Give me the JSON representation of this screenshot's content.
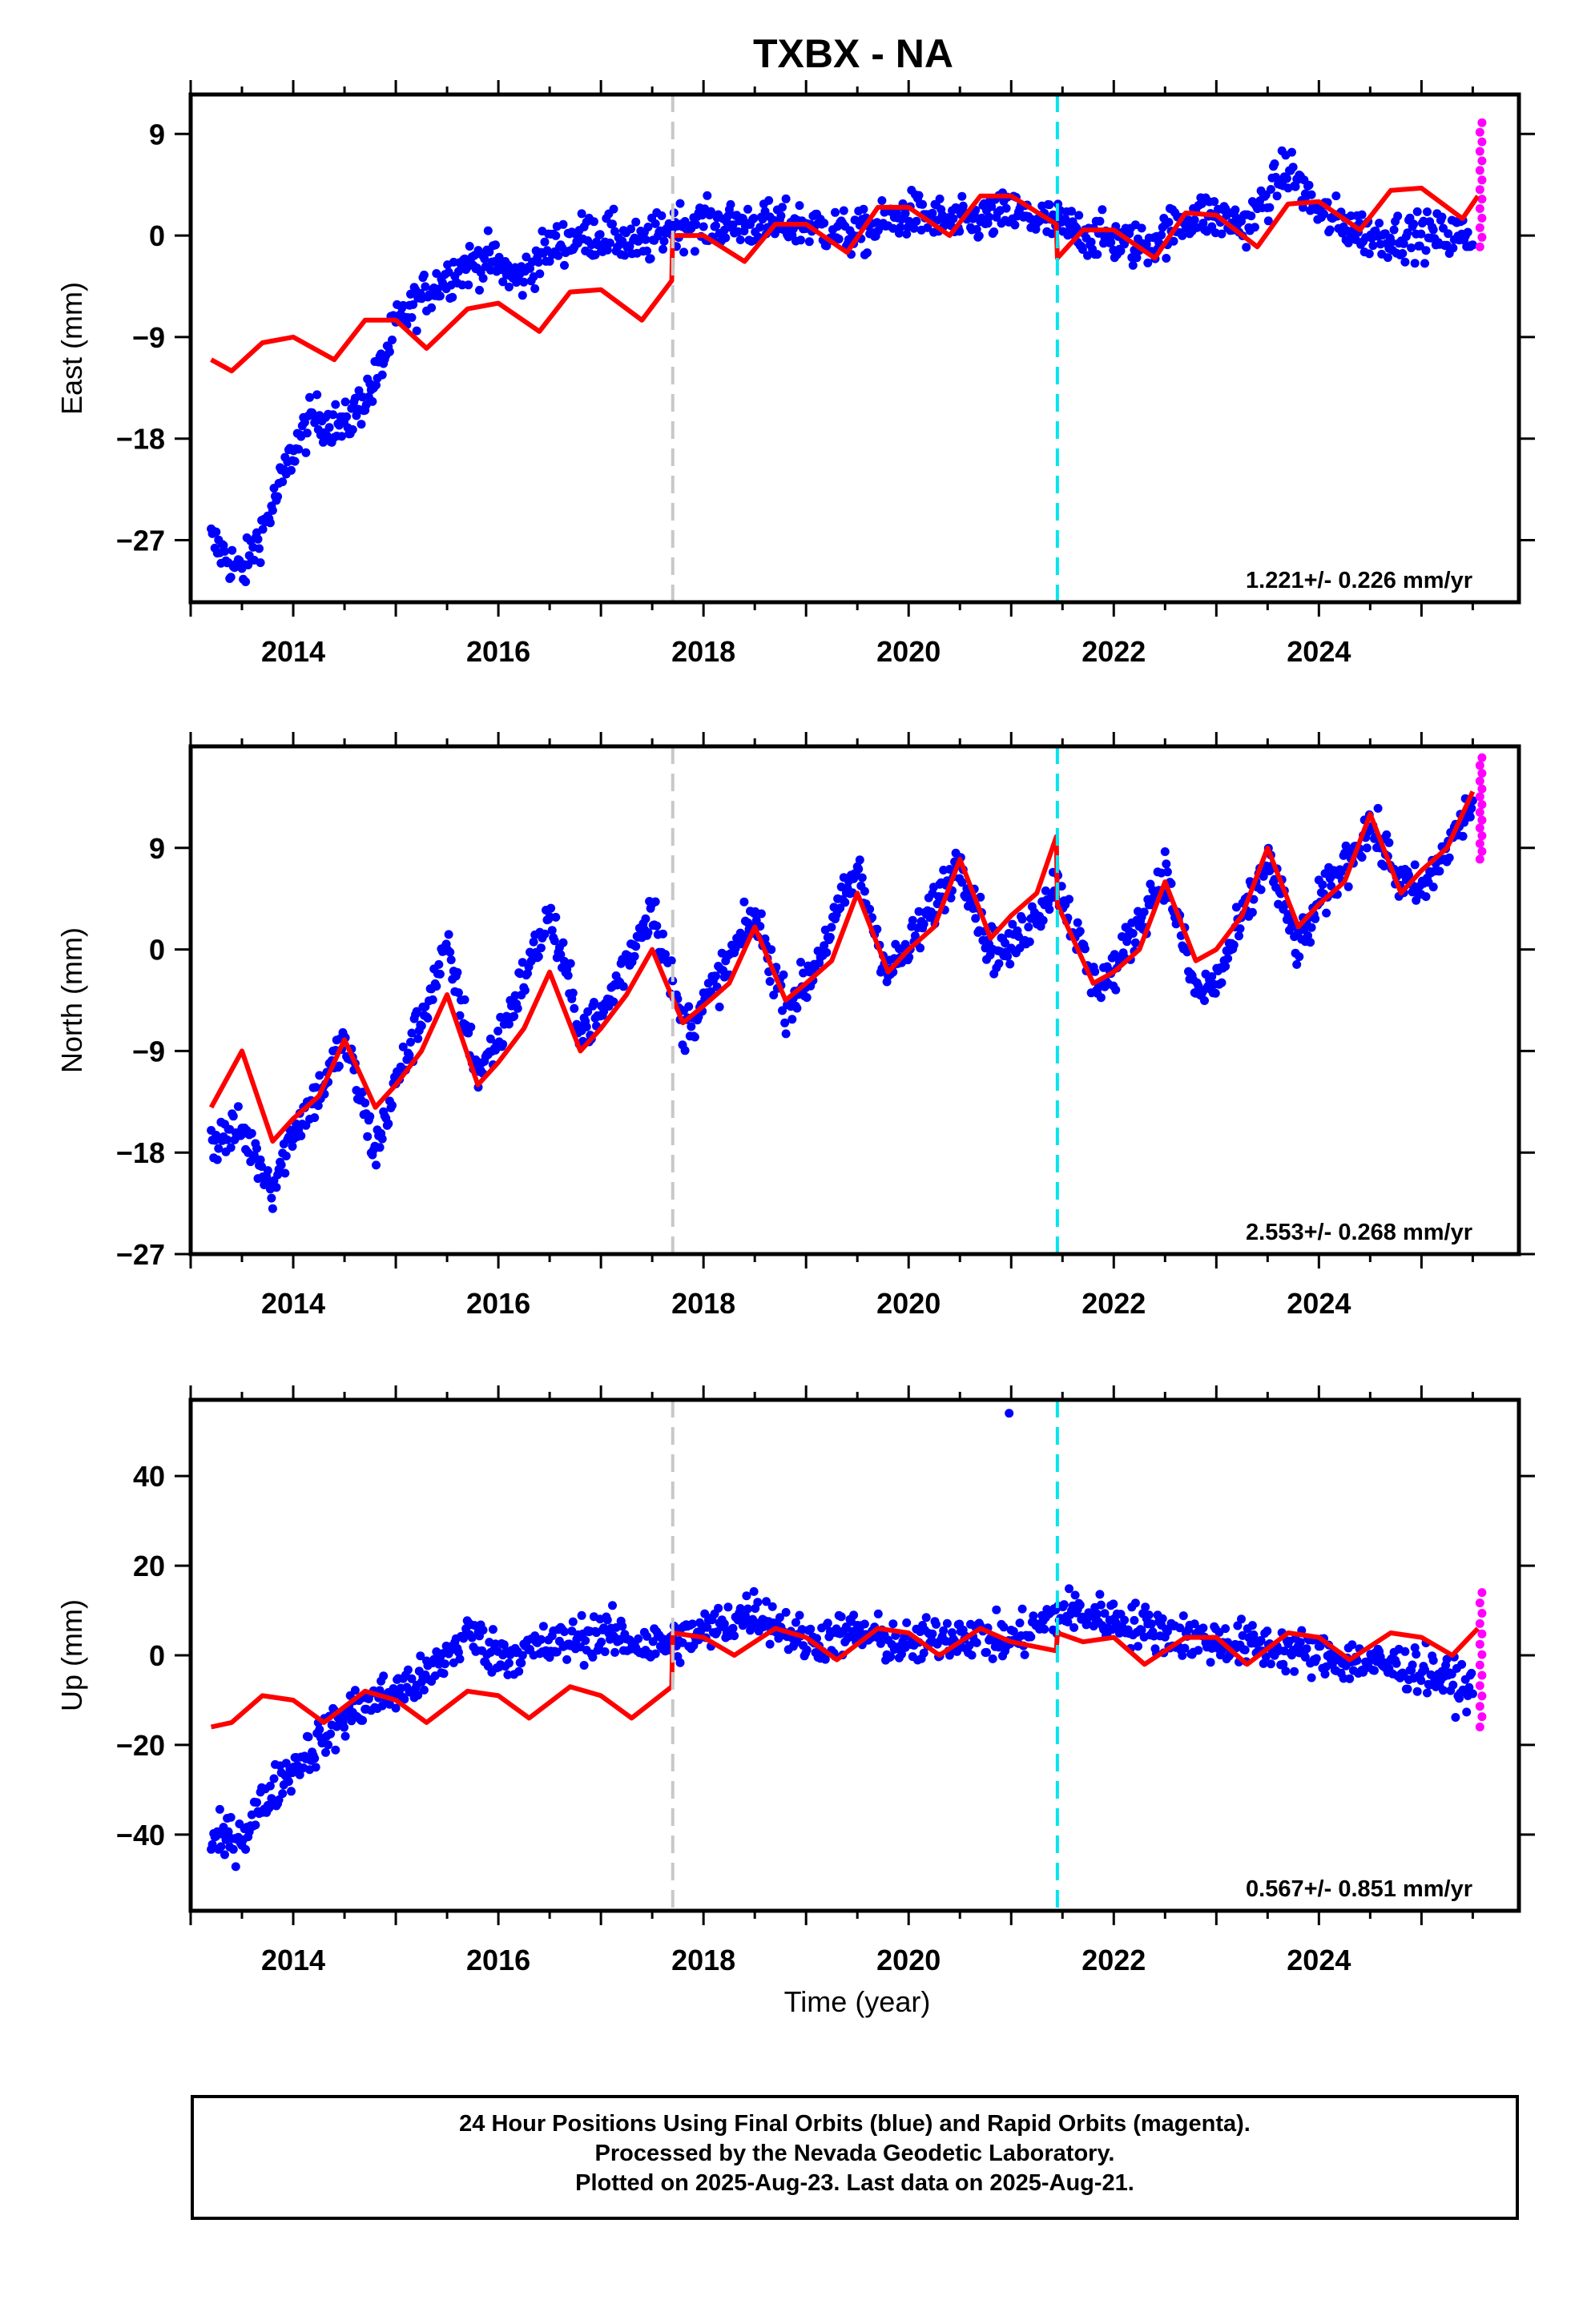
{
  "title": "TXBX - NA",
  "xlabel": "Time (year)",
  "footer": {
    "line1": "24 Hour Positions Using Final Orbits (blue) and Rapid Orbits (magenta).",
    "line2": "Processed by the Nevada Geodetic Laboratory.",
    "line3": "Plotted on 2025-Aug-23. Last data on 2025-Aug-21."
  },
  "colors": {
    "final_orbits": "#0000ff",
    "rapid_orbits": "#ff00ff",
    "model": "#ff0000",
    "equipment_change": "#c8c8c8",
    "earthquake_offset": "#00e5ee"
  },
  "chart_data": [
    {
      "type": "scatter",
      "ylabel": "East (mm)",
      "xlim": [
        2013.0,
        2025.95
      ],
      "ylim": [
        -32.5,
        12.5
      ],
      "xticks": [
        "2014",
        "2016",
        "2018",
        "2020",
        "2022",
        "2024"
      ],
      "yticks": [
        "9",
        "0",
        "-9",
        "-18",
        "-27"
      ],
      "grid": false,
      "rate": "1.221+/- 0.226 mm/yr",
      "vlines": [
        {
          "x": 2017.7,
          "color": "gray"
        },
        {
          "x": 2021.45,
          "color": "cyan"
        }
      ],
      "series": [
        {
          "kind": "final",
          "x": [
            2013.2,
            2013.5,
            2013.8,
            2014.0,
            2014.2,
            2014.5,
            2014.8,
            2015.0,
            2015.3,
            2015.6,
            2015.9,
            2016.2,
            2016.5,
            2016.8,
            2017.1,
            2017.4,
            2017.7,
            2018.0,
            2018.5,
            2019.0,
            2019.5,
            2020.0,
            2020.5,
            2021.0,
            2021.45,
            2021.8,
            2022.3,
            2022.8,
            2023.3,
            2023.7,
            2024.0,
            2024.5,
            2025.0,
            2025.5
          ],
          "y": [
            -27,
            -30,
            -24,
            -19,
            -16,
            -17,
            -13,
            -8,
            -5,
            -3,
            -2,
            -4,
            -1,
            0,
            0,
            -1,
            1,
            1,
            1,
            1,
            0,
            2,
            1,
            2,
            1,
            0,
            -1,
            2,
            1,
            6,
            2,
            0,
            0,
            0
          ]
        },
        {
          "kind": "rapid",
          "x": [
            2025.57,
            2025.57,
            2025.58,
            2025.58,
            2025.59
          ],
          "y": [
            10,
            6,
            4,
            1,
            -1
          ]
        },
        {
          "kind": "model",
          "x": [
            2013.2,
            2013.4,
            2013.7,
            2014.0,
            2014.4,
            2014.7,
            2015.0,
            2015.3,
            2015.7,
            2016.0,
            2016.4,
            2016.7,
            2017.0,
            2017.4,
            2017.69,
            2017.7,
            2018.0,
            2018.4,
            2018.7,
            2019.0,
            2019.4,
            2019.7,
            2020.0,
            2020.4,
            2020.7,
            2021.0,
            2021.44,
            2021.45,
            2021.7,
            2022.0,
            2022.4,
            2022.7,
            2023.0,
            2023.4,
            2023.7,
            2024.0,
            2024.4,
            2024.7,
            2025.0,
            2025.4,
            2025.55
          ],
          "y": [
            -11,
            -12,
            -9.5,
            -9,
            -11,
            -7.5,
            -7.5,
            -10,
            -6.5,
            -6,
            -8.5,
            -5,
            -4.8,
            -7.5,
            -4,
            0,
            0,
            -2.3,
            1,
            1,
            -1.5,
            2.5,
            2.5,
            0,
            3.5,
            3.5,
            1,
            -2,
            0.5,
            0.5,
            -2,
            2,
            1.8,
            -1,
            2.8,
            3,
            0.5,
            4,
            4.2,
            1.5,
            3.5
          ]
        }
      ]
    },
    {
      "type": "scatter",
      "ylabel": "North (mm)",
      "xlim": [
        2013.0,
        2025.95
      ],
      "ylim": [
        -27,
        18
      ],
      "xticks": [
        "2014",
        "2016",
        "2018",
        "2020",
        "2022",
        "2024"
      ],
      "yticks": [
        "9",
        "0",
        "-9",
        "-18",
        "-27"
      ],
      "grid": false,
      "rate": "2.553+/- 0.268 mm/yr",
      "vlines": [
        {
          "x": 2017.7,
          "color": "gray"
        },
        {
          "x": 2021.45,
          "color": "cyan"
        }
      ],
      "series": [
        {
          "kind": "final",
          "x": [
            2013.2,
            2013.5,
            2013.8,
            2014.0,
            2014.3,
            2014.5,
            2014.8,
            2015.0,
            2015.5,
            2015.8,
            2016.0,
            2016.5,
            2016.8,
            2017.0,
            2017.5,
            2017.8,
            2018.0,
            2018.5,
            2018.8,
            2019.0,
            2019.5,
            2019.8,
            2020.0,
            2020.5,
            2020.8,
            2021.0,
            2021.45,
            2021.8,
            2022.0,
            2022.5,
            2022.8,
            2023.0,
            2023.5,
            2023.8,
            2024.0,
            2024.5,
            2024.8,
            2025.0,
            2025.5
          ],
          "y": [
            -17,
            -16,
            -21,
            -16,
            -12,
            -8,
            -18,
            -12,
            0,
            -11,
            -8,
            3,
            -7,
            -6,
            4,
            -7,
            -5,
            3,
            -5,
            -3,
            7,
            -2,
            0,
            8,
            0,
            0,
            6,
            -3,
            -2,
            7,
            -4,
            -3,
            8,
            0,
            4,
            11,
            6,
            5,
            13
          ]
        },
        {
          "kind": "rapid",
          "x": [
            2025.57,
            2025.57,
            2025.58,
            2025.58,
            2025.59
          ],
          "y": [
            17,
            15,
            12,
            10,
            8
          ]
        },
        {
          "kind": "model",
          "x": [
            2013.2,
            2013.5,
            2013.8,
            2014.0,
            2014.25,
            2014.5,
            2014.8,
            2015.0,
            2015.25,
            2015.5,
            2015.8,
            2016.0,
            2016.25,
            2016.5,
            2016.8,
            2017.0,
            2017.25,
            2017.5,
            2017.8,
            2018.0,
            2018.25,
            2018.5,
            2018.8,
            2019.0,
            2019.25,
            2019.5,
            2019.8,
            2020.0,
            2020.25,
            2020.5,
            2020.8,
            2021.0,
            2021.25,
            2021.44,
            2021.45,
            2021.8,
            2022.0,
            2022.25,
            2022.5,
            2022.8,
            2023.0,
            2023.25,
            2023.5,
            2023.8,
            2024.0,
            2024.25,
            2024.5,
            2024.8,
            2025.0,
            2025.25,
            2025.5
          ],
          "y": [
            -14,
            -9,
            -17,
            -15,
            -13,
            -8,
            -14,
            -12,
            -9,
            -4,
            -12,
            -10,
            -7,
            -2,
            -9,
            -7,
            -4,
            0,
            -6.5,
            -5,
            -3,
            2,
            -4.5,
            -3,
            -1,
            5,
            -2,
            0,
            2,
            8,
            1,
            3,
            5,
            10,
            4,
            -3,
            -2,
            0,
            6,
            -1,
            0,
            3,
            9,
            2,
            4,
            6,
            12,
            5,
            7,
            9,
            14
          ]
        }
      ]
    },
    {
      "type": "scatter",
      "ylabel": "Up (mm)",
      "xlim": [
        2013.0,
        2025.95
      ],
      "ylim": [
        -57,
        57
      ],
      "xticks": [
        "2014",
        "2016",
        "2018",
        "2020",
        "2022",
        "2024"
      ],
      "yticks": [
        "40",
        "20",
        "0",
        "-20",
        "-40"
      ],
      "grid": false,
      "rate": "0.567+/- 0.851 mm/yr",
      "vlines": [
        {
          "x": 2017.7,
          "color": "gray"
        },
        {
          "x": 2021.45,
          "color": "cyan"
        }
      ],
      "series": [
        {
          "kind": "final",
          "x": [
            2013.2,
            2013.5,
            2013.8,
            2014.0,
            2014.3,
            2014.6,
            2015.0,
            2015.3,
            2015.7,
            2016.0,
            2016.5,
            2017.0,
            2017.5,
            2018.0,
            2018.5,
            2019.0,
            2019.5,
            2020.0,
            2020.5,
            2021.0,
            2021.5,
            2022.0,
            2022.5,
            2023.0,
            2023.5,
            2024.0,
            2024.5,
            2025.0,
            2025.5
          ],
          "y": [
            -42,
            -40,
            -30,
            -25,
            -18,
            -12,
            -8,
            -5,
            5,
            0,
            2,
            5,
            2,
            5,
            10,
            3,
            5,
            2,
            5,
            3,
            10,
            8,
            5,
            3,
            2,
            0,
            -2,
            -3,
            -8
          ]
        },
        {
          "kind": "outlier",
          "x": [
            2020.98
          ],
          "y": [
            54
          ]
        },
        {
          "kind": "rapid",
          "x": [
            2025.57,
            2025.57,
            2025.58,
            2025.58,
            2025.59
          ],
          "y": [
            14,
            8,
            2,
            -10,
            -16
          ]
        },
        {
          "kind": "model",
          "x": [
            2013.2,
            2013.4,
            2013.7,
            2014.0,
            2014.3,
            2014.7,
            2015.0,
            2015.3,
            2015.7,
            2016.0,
            2016.3,
            2016.7,
            2017.0,
            2017.3,
            2017.69,
            2017.7,
            2018.0,
            2018.3,
            2018.7,
            2019.0,
            2019.3,
            2019.7,
            2020.0,
            2020.3,
            2020.7,
            2021.0,
            2021.44,
            2021.45,
            2021.7,
            2022.0,
            2022.3,
            2022.7,
            2023.0,
            2023.3,
            2023.7,
            2024.0,
            2024.3,
            2024.7,
            2025.0,
            2025.3,
            2025.55
          ],
          "y": [
            -16,
            -15,
            -9,
            -10,
            -15,
            -8,
            -10,
            -15,
            -8,
            -9,
            -14,
            -7,
            -9,
            -14,
            -7,
            5,
            4,
            0,
            6,
            4,
            -1,
            6,
            5,
            0,
            6,
            3,
            1,
            5,
            3,
            4,
            -2,
            4,
            4,
            -2,
            5,
            4,
            -1,
            5,
            4,
            0,
            6
          ]
        }
      ]
    }
  ]
}
